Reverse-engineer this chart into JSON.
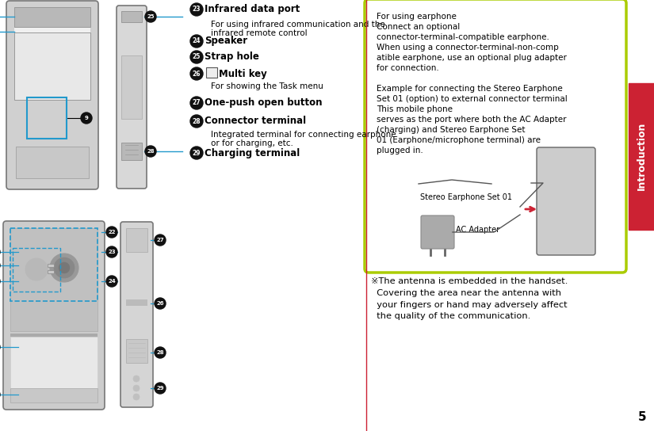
{
  "bg": "#ffffff",
  "tab_color": "#cc2233",
  "tab_text": "Introduction",
  "divider_color": "#cc2233",
  "arrow_color": "#2299cc",
  "green_border": "#aacc00",
  "items": [
    {
      "num": "23",
      "bold": "Infrared data port",
      "sub": "For using infrared communication and the\ninfrared remote control"
    },
    {
      "num": "24",
      "bold": "Speaker",
      "sub": ""
    },
    {
      "num": "25",
      "bold": "Strap hole",
      "sub": ""
    },
    {
      "num": "26",
      "bold": "Multi key",
      "sub": "For showing the Task menu"
    },
    {
      "num": "27",
      "bold": "One-push open button",
      "sub": ""
    },
    {
      "num": "28",
      "bold": "Connector terminal",
      "sub": "Integrated terminal for connecting earphone\nor for charging, etc."
    },
    {
      "num": "29",
      "bold": "Charging terminal",
      "sub": ""
    }
  ],
  "green_lines": [
    [
      "For using earphone",
      false
    ],
    [
      "Connect an optional",
      false
    ],
    [
      "connector-terminal-compatible earphone.",
      false
    ],
    [
      "When using a connector-terminal-non-comp",
      false
    ],
    [
      "atible earphone, use an optional plug adapter",
      false
    ],
    [
      "for connection.",
      false
    ],
    [
      "",
      false
    ],
    [
      "Example for connecting the Stereo Earphone",
      false
    ],
    [
      "Set 01 (option) to external connector terminal",
      false
    ],
    [
      "This mobile phone",
      false
    ],
    [
      "serves as the port where both the AC Adapter",
      false
    ],
    [
      "(charging) and Stereo Earphone Set",
      false
    ],
    [
      "01 (Earphone/microphone terminal) are",
      false
    ],
    [
      "plugged in.",
      false
    ]
  ],
  "earphone_label": "Stereo Earphone Set 01",
  "adapter_label": "AC Adapter",
  "note": "※The antenna is embedded in the handset.\n  Covering the area near the antenna with\n  your fingers or hand may adversely affect\n  the quality of the communication.",
  "page": "5"
}
